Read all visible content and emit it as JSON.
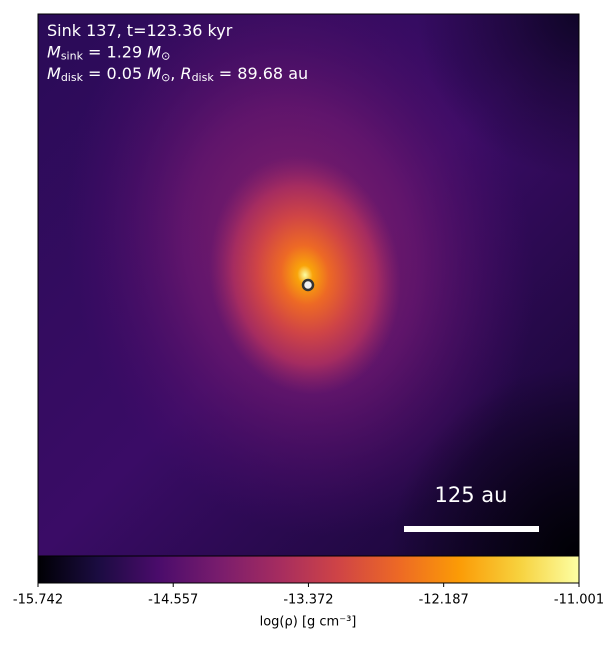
{
  "annotations": [
    [
      {
        "text": "Sink 137, t=123.36 kyr",
        "style": "normal"
      }
    ],
    [
      {
        "text": "M",
        "style": "italic"
      },
      {
        "text": "sink",
        "style": "sub"
      },
      {
        "text": " = 1.29 ",
        "style": "normal"
      },
      {
        "text": "M",
        "style": "italic"
      },
      {
        "text": "⊙",
        "style": "sub"
      }
    ],
    [
      {
        "text": "M",
        "style": "italic"
      },
      {
        "text": "disk",
        "style": "sub"
      },
      {
        "text": " = 0.05 ",
        "style": "normal"
      },
      {
        "text": "M",
        "style": "italic"
      },
      {
        "text": "⊙",
        "style": "sub"
      },
      {
        "text": ", ",
        "style": "normal"
      },
      {
        "text": "R",
        "style": "italic"
      },
      {
        "text": "disk",
        "style": "sub"
      },
      {
        "text": " = 89.68 au",
        "style": "normal"
      }
    ]
  ],
  "scale_bar": "125 au",
  "colorbar": {
    "colormap": "inferno",
    "clim": [
      -15.742,
      -11.001
    ],
    "ticks": [
      -15.742,
      -14.557,
      -13.372,
      -12.187,
      -11.001
    ],
    "label": "log(ρ) [g cm⁻³]"
  }
}
